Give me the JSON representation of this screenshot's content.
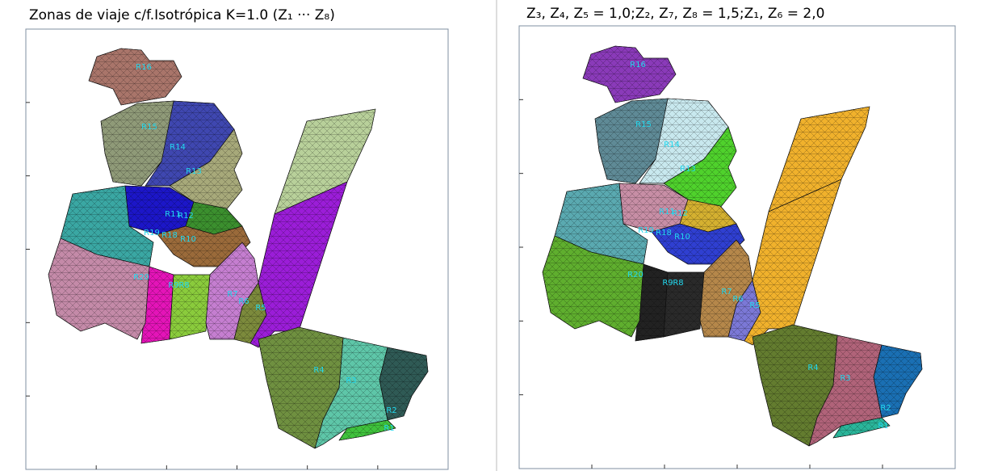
{
  "panels": [
    {
      "title": "Zonas de viaje c/f.Isotrópica K=1.0 (Z₁ ··· Z₈)",
      "regions": [
        "R16",
        "R15",
        "R14",
        "R13",
        "R11",
        "R12",
        "R19",
        "R18",
        "R10",
        "R20",
        "R9",
        "R8",
        "R7",
        "R6",
        "R5",
        "R4",
        "R3",
        "R2",
        "R1"
      ]
    },
    {
      "title": "Z₃, Z₄, Z₅ = 1,0;Z₂, Z₇, Z₈ = 1,5;Z₁, Z₆ = 2,0",
      "regions": [
        "R16",
        "R15",
        "R14",
        "R13",
        "R11",
        "R12",
        "R19",
        "R18",
        "R10",
        "R20",
        "R9",
        "R8",
        "R7",
        "R6",
        "R5",
        "R4",
        "R3",
        "R2",
        "R1"
      ]
    }
  ]
}
